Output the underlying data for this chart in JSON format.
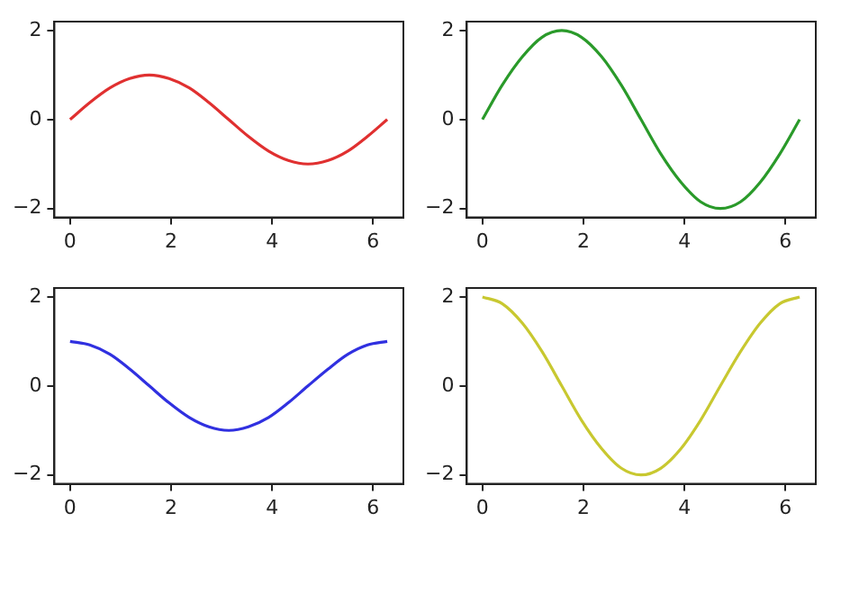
{
  "chart_data": [
    {
      "type": "line",
      "x": [
        0,
        0.39,
        0.79,
        1.18,
        1.57,
        1.96,
        2.36,
        2.75,
        3.14,
        3.53,
        3.93,
        4.32,
        4.71,
        5.11,
        5.5,
        5.89,
        6.28
      ],
      "series": [
        {
          "color": "#e03030",
          "values": [
            0,
            0.38,
            0.71,
            0.92,
            1,
            0.92,
            0.71,
            0.38,
            0,
            -0.38,
            -0.71,
            -0.92,
            -1,
            -0.92,
            -0.71,
            -0.38,
            0
          ]
        }
      ],
      "xlim": [
        -0.31,
        6.6
      ],
      "ylim": [
        -2.2,
        2.2
      ],
      "xticks": [
        0,
        2,
        4,
        6
      ],
      "yticks": [
        -2,
        0,
        2
      ],
      "grid": false,
      "legend": false
    },
    {
      "type": "line",
      "x": [
        0,
        0.39,
        0.79,
        1.18,
        1.57,
        1.96,
        2.36,
        2.75,
        3.14,
        3.53,
        3.93,
        4.32,
        4.71,
        5.11,
        5.5,
        5.89,
        6.28
      ],
      "series": [
        {
          "color": "#2a9a2a",
          "values": [
            0,
            0.77,
            1.41,
            1.85,
            2,
            1.85,
            1.41,
            0.77,
            0,
            -0.77,
            -1.41,
            -1.85,
            -2,
            -1.85,
            -1.41,
            -0.77,
            0
          ]
        }
      ],
      "xlim": [
        -0.31,
        6.6
      ],
      "ylim": [
        -2.2,
        2.2
      ],
      "xticks": [
        0,
        2,
        4,
        6
      ],
      "yticks": [
        -2,
        0,
        2
      ],
      "grid": false,
      "legend": false
    },
    {
      "type": "line",
      "x": [
        0,
        0.39,
        0.79,
        1.18,
        1.57,
        1.96,
        2.36,
        2.75,
        3.14,
        3.53,
        3.93,
        4.32,
        4.71,
        5.11,
        5.5,
        5.89,
        6.28
      ],
      "series": [
        {
          "color": "#3030e0",
          "values": [
            1,
            0.92,
            0.71,
            0.38,
            0,
            -0.38,
            -0.71,
            -0.92,
            -1,
            -0.92,
            -0.71,
            -0.38,
            0,
            0.38,
            0.71,
            0.92,
            1
          ]
        }
      ],
      "xlim": [
        -0.31,
        6.6
      ],
      "ylim": [
        -2.2,
        2.2
      ],
      "xticks": [
        0,
        2,
        4,
        6
      ],
      "yticks": [
        -2,
        0,
        2
      ],
      "grid": false,
      "legend": false
    },
    {
      "type": "line",
      "x": [
        0,
        0.39,
        0.79,
        1.18,
        1.57,
        1.96,
        2.36,
        2.75,
        3.14,
        3.53,
        3.93,
        4.32,
        4.71,
        5.11,
        5.5,
        5.89,
        6.28
      ],
      "series": [
        {
          "color": "#c8c830",
          "values": [
            2,
            1.85,
            1.41,
            0.77,
            0,
            -0.77,
            -1.41,
            -1.85,
            -2,
            -1.85,
            -1.41,
            -0.77,
            0,
            0.77,
            1.41,
            1.85,
            2
          ]
        }
      ],
      "xlim": [
        -0.31,
        6.6
      ],
      "ylim": [
        -2.2,
        2.2
      ],
      "xticks": [
        0,
        2,
        4,
        6
      ],
      "yticks": [
        -2,
        0,
        2
      ],
      "grid": false,
      "legend": false
    }
  ]
}
